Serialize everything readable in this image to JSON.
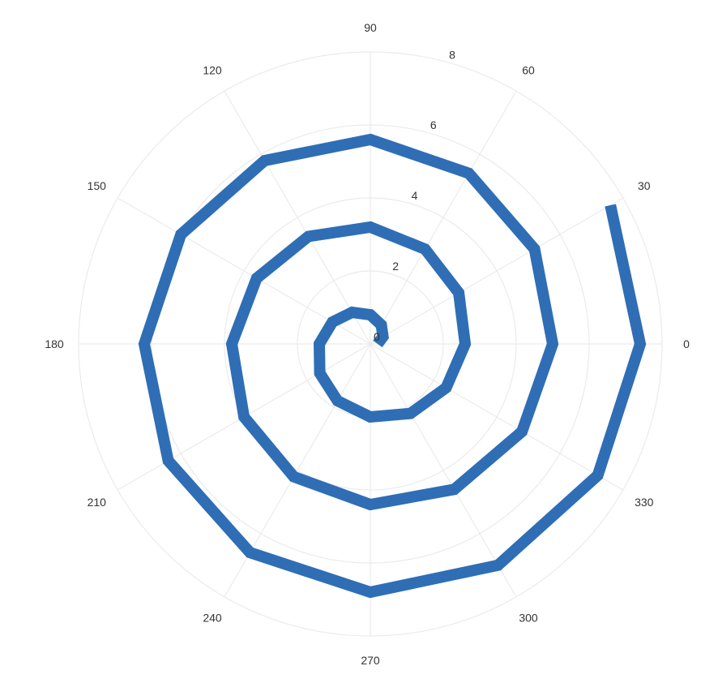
{
  "chart_data": {
    "type": "line",
    "projection": "polar",
    "title": "",
    "grid": true,
    "legend": "none",
    "angular_axis": {
      "unit": "degrees",
      "direction": "counterclockwise",
      "zero_at": "right",
      "tick_labels": [
        "0",
        "30",
        "60",
        "90",
        "120",
        "150",
        "180",
        "210",
        "240",
        "270",
        "300",
        "330"
      ]
    },
    "radial_axis": {
      "range": [
        0,
        8
      ],
      "tick_labels": [
        "0",
        "2",
        "4",
        "6",
        "8"
      ],
      "tick_angle_deg": 75
    },
    "series": [
      {
        "color": "#2f6eb5",
        "theta": [
          0,
          30,
          60,
          90,
          120,
          150,
          180,
          210,
          240,
          270,
          300,
          330,
          360,
          390,
          420,
          450,
          480,
          510,
          540,
          570,
          600,
          630,
          660,
          690,
          720,
          750,
          780,
          810,
          840,
          870,
          900,
          930,
          960,
          990,
          1020,
          1050,
          1080,
          1110
        ],
        "r": [
          0.2,
          0.4,
          0.6,
          0.8,
          1.0,
          1.2,
          1.4,
          1.6,
          1.8,
          2.0,
          2.2,
          2.4,
          2.6,
          2.8,
          3.0,
          3.2,
          3.4,
          3.6,
          3.8,
          4.0,
          4.2,
          4.4,
          4.6,
          4.8,
          5.0,
          5.2,
          5.4,
          5.6,
          5.8,
          6.0,
          6.2,
          6.4,
          6.6,
          6.8,
          7.0,
          7.2,
          7.4,
          7.6
        ]
      }
    ]
  }
}
